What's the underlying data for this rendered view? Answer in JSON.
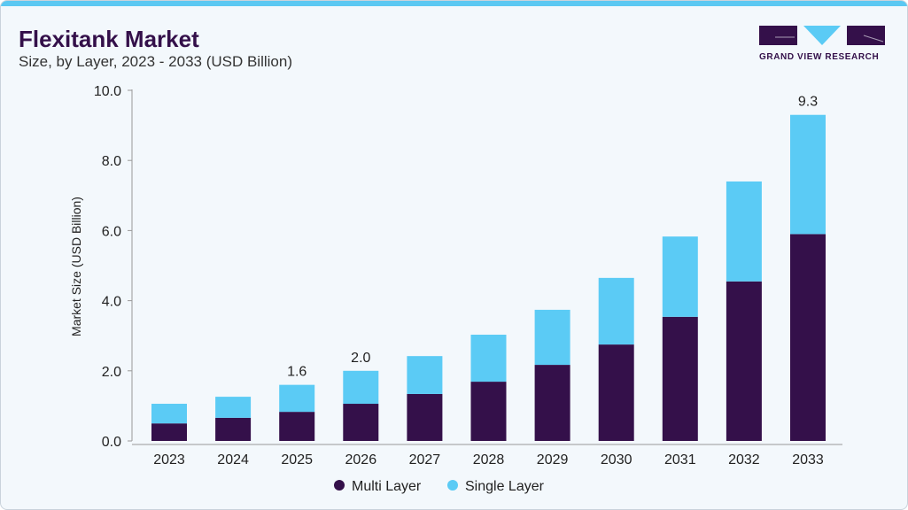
{
  "header": {
    "title": "Flexitank Market",
    "subtitle": "Size, by Layer, 2023 - 2033 (USD Billion)"
  },
  "logo": {
    "text": "GRAND VIEW RESEARCH"
  },
  "colors": {
    "multi": "#34104a",
    "single": "#5bcbf5"
  },
  "chart_data": {
    "type": "bar",
    "stacked": true,
    "categories": [
      "2023",
      "2024",
      "2025",
      "2026",
      "2027",
      "2028",
      "2029",
      "2030",
      "2031",
      "2032",
      "2033"
    ],
    "series": [
      {
        "name": "Multi Layer",
        "values": [
          0.5,
          0.66,
          0.83,
          1.06,
          1.34,
          1.69,
          2.17,
          2.75,
          3.54,
          4.55,
          5.9
        ]
      },
      {
        "name": "Single Layer",
        "values": [
          0.56,
          0.6,
          0.77,
          0.94,
          1.08,
          1.34,
          1.57,
          1.9,
          2.29,
          2.85,
          3.4
        ]
      }
    ],
    "data_labels": {
      "2025": "1.6",
      "2026": "2.0",
      "2033": "9.3"
    },
    "ylabel": "Market Size (USD Billion)",
    "xlabel": "",
    "ylim": [
      0,
      10
    ],
    "yticks": [
      "0.0",
      "2.0",
      "4.0",
      "6.0",
      "8.0",
      "10.0"
    ],
    "grid": false,
    "legend": "bottom"
  }
}
